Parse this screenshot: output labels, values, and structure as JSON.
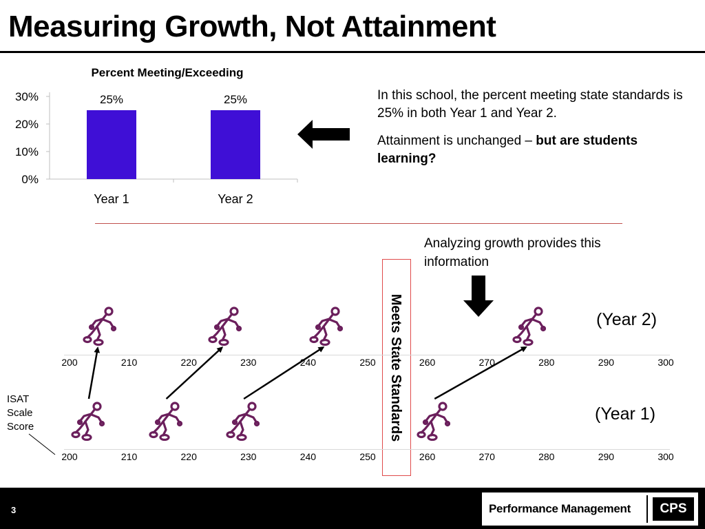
{
  "slide": {
    "title": "Measuring Growth, Not Attainment",
    "page_number": "3"
  },
  "chart_data": {
    "type": "bar",
    "title": "Percent Meeting/Exceeding",
    "categories": [
      "Year 1",
      "Year 2"
    ],
    "values": [
      25,
      25
    ],
    "value_labels": [
      "25%",
      "25%"
    ],
    "yticks": [
      "0%",
      "10%",
      "20%",
      "30%"
    ],
    "ylim": [
      0,
      30
    ],
    "bar_color": "#3f0fd6",
    "xlabel": "",
    "ylabel": ""
  },
  "explanation": {
    "p1": "In this school, the percent meeting state standards is 25% in both Year 1 and Year 2.",
    "p2_plain": "Attainment is unchanged – ",
    "p2_bold": "but are students learning?"
  },
  "growth": {
    "analyzing_text": "Analyzing growth provides this information",
    "meets_label": "Meets State Standards",
    "year2_label": "(Year 2)",
    "year1_label": "(Year 1)",
    "axis_label": "ISAT\nScale\nScore",
    "scale_ticks": [
      "200",
      "210",
      "220",
      "230",
      "240",
      "250",
      "260",
      "270",
      "280",
      "290",
      "300"
    ],
    "students": [
      {
        "year1": 203,
        "year2": 205
      },
      {
        "year1": 216,
        "year2": 226
      },
      {
        "year1": 229,
        "year2": 243
      },
      {
        "year1": 261,
        "year2": 277
      }
    ]
  },
  "footer": {
    "logo_text": "Performance Management",
    "logo_badge": "CPS"
  },
  "colors": {
    "bar": "#3f0fd6",
    "figure": "#6b1f5c",
    "rule": "#c0504d",
    "meets_border": "#e04a4a"
  },
  "icons": {
    "left_arrow": "arrow-left-icon",
    "down_arrow": "arrow-down-icon",
    "student": "student-figure-icon"
  }
}
